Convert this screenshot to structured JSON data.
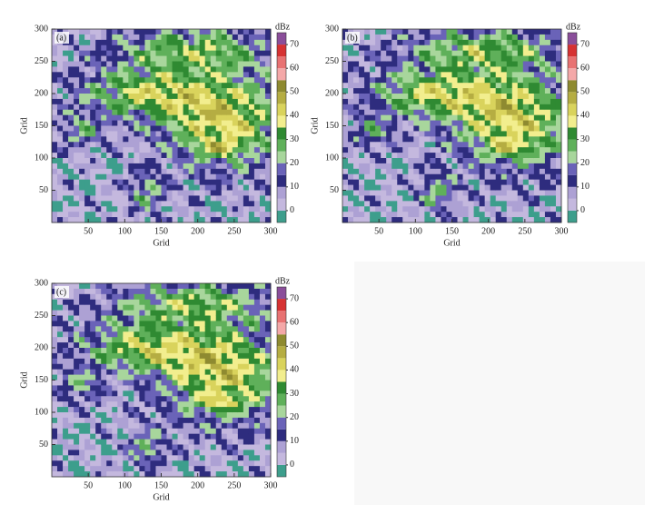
{
  "chart_data": [
    {
      "type": "contour",
      "panel_label": "(a)",
      "xlabel": "Grid",
      "ylabel": "Grid",
      "xlim": [
        0,
        300
      ],
      "ylim": [
        0,
        300
      ],
      "xticks": [
        50,
        100,
        150,
        200,
        250,
        300
      ],
      "yticks": [
        50,
        100,
        150,
        200,
        250,
        300
      ],
      "colorbar": {
        "title": "dBz",
        "ticks": [
          0,
          10,
          20,
          30,
          40,
          50,
          60,
          70
        ],
        "levels": [
          -5,
          0,
          5,
          10,
          15,
          20,
          25,
          30,
          35,
          40,
          45,
          50,
          55,
          60,
          65,
          70,
          75
        ],
        "colors": [
          "#3d9e8c",
          "#c4b8de",
          "#ada1d4",
          "#2e2c7e",
          "#6a63b8",
          "#a8d69c",
          "#5fb05a",
          "#2f8a32",
          "#f2ee8e",
          "#d9d35c",
          "#b5ad42",
          "#8e8a30",
          "#f4a8a8",
          "#e87272",
          "#d63232",
          "#8a4e9a"
        ]
      }
    },
    {
      "type": "contour",
      "panel_label": "(b)",
      "xlabel": "Grid",
      "ylabel": "Grid",
      "xlim": [
        0,
        300
      ],
      "ylim": [
        0,
        300
      ],
      "xticks": [
        50,
        100,
        150,
        200,
        250,
        300
      ],
      "yticks": [
        50,
        100,
        150,
        200,
        250,
        300
      ],
      "colorbar": {
        "title": "dBz",
        "ticks": [
          0,
          10,
          20,
          30,
          40,
          50,
          60,
          70
        ],
        "levels": [
          -5,
          0,
          5,
          10,
          15,
          20,
          25,
          30,
          35,
          40,
          45,
          50,
          55,
          60,
          65,
          70,
          75
        ],
        "colors": [
          "#3d9e8c",
          "#c4b8de",
          "#ada1d4",
          "#2e2c7e",
          "#6a63b8",
          "#a8d69c",
          "#5fb05a",
          "#2f8a32",
          "#f2ee8e",
          "#d9d35c",
          "#b5ad42",
          "#8e8a30",
          "#f4a8a8",
          "#e87272",
          "#d63232",
          "#8a4e9a"
        ]
      }
    },
    {
      "type": "contour",
      "panel_label": "(c)",
      "xlabel": "Grid",
      "ylabel": "Grid",
      "xlim": [
        0,
        300
      ],
      "ylim": [
        0,
        300
      ],
      "xticks": [
        50,
        100,
        150,
        200,
        250,
        300
      ],
      "yticks": [
        50,
        100,
        150,
        200,
        250,
        300
      ],
      "colorbar": {
        "title": "dBz",
        "ticks": [
          0,
          10,
          20,
          30,
          40,
          50,
          60,
          70
        ],
        "levels": [
          -5,
          0,
          5,
          10,
          15,
          20,
          25,
          30,
          35,
          40,
          45,
          50,
          55,
          60,
          65,
          70,
          75
        ],
        "colors": [
          "#3d9e8c",
          "#c4b8de",
          "#ada1d4",
          "#2e2c7e",
          "#6a63b8",
          "#a8d69c",
          "#5fb05a",
          "#2f8a32",
          "#f2ee8e",
          "#d9d35c",
          "#b5ad42",
          "#8e8a30",
          "#f4a8a8",
          "#e87272",
          "#d63232",
          "#8a4e9a"
        ]
      }
    }
  ]
}
